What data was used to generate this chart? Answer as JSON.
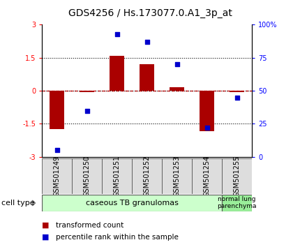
{
  "title": "GDS4256 / Hs.173077.0.A1_3p_at",
  "samples": [
    "GSM501249",
    "GSM501250",
    "GSM501251",
    "GSM501252",
    "GSM501253",
    "GSM501254",
    "GSM501255"
  ],
  "red_values": [
    -1.75,
    -0.05,
    1.6,
    1.2,
    0.15,
    -1.85,
    -0.05
  ],
  "blue_values": [
    5,
    35,
    93,
    87,
    70,
    22,
    45
  ],
  "ylim_left": [
    -3,
    3
  ],
  "ylim_right": [
    0,
    100
  ],
  "yticks_left": [
    -3,
    -1.5,
    0,
    1.5,
    3
  ],
  "ytick_labels_left": [
    "-3",
    "-1.5",
    "0",
    "1.5",
    "3"
  ],
  "yticks_right": [
    0,
    25,
    50,
    75,
    100
  ],
  "ytick_labels_right": [
    "0",
    "25",
    "50",
    "75",
    "100%"
  ],
  "dotted_lines": [
    -1.5,
    1.5
  ],
  "bar_color": "#aa0000",
  "dot_color": "#0000cc",
  "bar_width": 0.5,
  "group1_count": 6,
  "group2_count": 1,
  "group1_label": "caseous TB granulomas",
  "group2_label": "normal lung\nparenchyma",
  "group1_color": "#ccffcc",
  "group2_color": "#99ee99",
  "cell_type_label": "cell type",
  "legend_red_label": "transformed count",
  "legend_blue_label": "percentile rank within the sample",
  "title_fontsize": 10,
  "tick_fontsize": 7,
  "label_fontsize": 8
}
